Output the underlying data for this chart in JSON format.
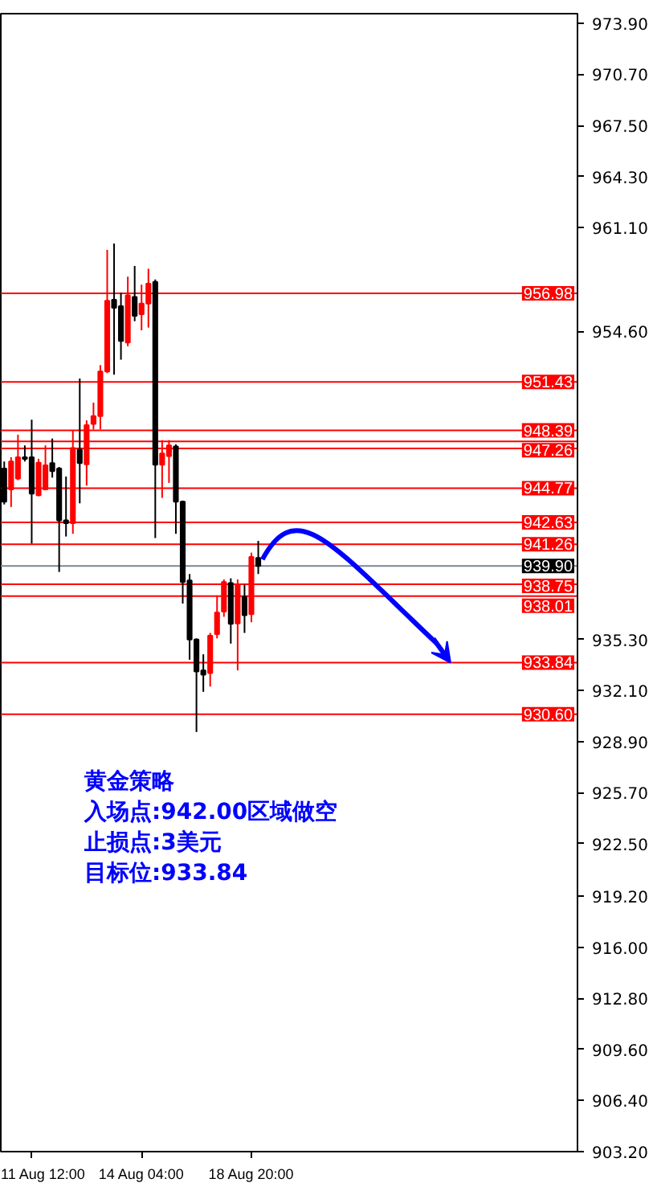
{
  "chart_data": {
    "type": "candlestick",
    "categories": [
      null,
      null,
      null,
      null,
      "11 Aug 12:00",
      null,
      null,
      null,
      null,
      null,
      null,
      null,
      null,
      null,
      null,
      null,
      null,
      null,
      null,
      null,
      "14 Aug 04:00",
      null,
      null,
      null,
      null,
      null,
      null,
      null,
      null,
      null,
      null,
      null,
      null,
      null,
      null,
      null,
      "18 Aug 20:00",
      null,
      null,
      null,
      null,
      null,
      null,
      null,
      null,
      null,
      null,
      null,
      null,
      null,
      null,
      null,
      null,
      null,
      null,
      null,
      null,
      null,
      null,
      null,
      null,
      null,
      null,
      null,
      null,
      null,
      null,
      null,
      null,
      null,
      null,
      null,
      null,
      null,
      null,
      null,
      null,
      null,
      null,
      null,
      null,
      null,
      null,
      null
    ],
    "ohlc": [
      [
        946.0,
        946.44,
        943.75,
        943.92
      ],
      [
        944.69,
        946.71,
        943.59,
        946.44
      ],
      [
        945.37,
        948.12,
        945.27,
        946.71
      ],
      [
        946.71,
        947.45,
        946.44,
        946.61
      ],
      [
        946.71,
        949.06,
        941.3,
        944.43
      ],
      [
        944.33,
        946.61,
        944.26,
        946.37
      ],
      [
        944.69,
        947.45,
        944.69,
        946.2
      ],
      [
        946.34,
        947.88,
        945.43,
        945.84
      ],
      [
        946.0,
        946.1,
        939.52,
        942.75
      ],
      [
        942.75,
        945.5,
        941.74,
        942.58
      ],
      [
        942.58,
        948.39,
        941.91,
        947.28
      ],
      [
        947.18,
        951.64,
        943.82,
        946.34
      ],
      [
        946.27,
        949.02,
        944.93,
        948.72
      ],
      [
        948.79,
        950.13,
        948.45,
        949.29
      ],
      [
        949.29,
        952.48,
        948.45,
        952.08
      ],
      [
        952.08,
        959.7,
        951.98,
        956.51
      ],
      [
        956.58,
        960.1,
        951.88,
        956.07
      ],
      [
        956.17,
        957.01,
        952.82,
        953.99
      ],
      [
        953.89,
        958.02,
        953.66,
        956.85
      ],
      [
        956.75,
        958.69,
        955.23,
        955.57
      ],
      [
        955.67,
        957.52,
        954.66,
        956.34
      ],
      [
        956.34,
        958.52,
        954.83,
        957.58
      ],
      [
        957.69,
        957.85,
        941.64,
        946.24
      ],
      [
        946.24,
        947.78,
        944.16,
        946.94
      ],
      [
        946.78,
        947.78,
        945.1,
        947.45
      ],
      [
        947.38,
        947.51,
        941.91,
        943.92
      ],
      [
        943.92,
        943.99,
        937.54,
        938.89
      ],
      [
        938.99,
        939.39,
        934.02,
        935.29
      ],
      [
        935.29,
        935.36,
        929.49,
        933.28
      ],
      [
        933.35,
        934.36,
        932.01,
        933.08
      ],
      [
        933.18,
        935.7,
        932.34,
        935.53
      ],
      [
        935.63,
        938.05,
        935.36,
        936.97
      ],
      [
        937.04,
        939.05,
        936.71,
        938.89
      ],
      [
        938.82,
        939.12,
        935.03,
        936.27
      ],
      [
        936.3,
        939.05,
        933.35,
        938.72
      ],
      [
        937.95,
        938.72,
        935.7,
        936.81
      ],
      [
        936.87,
        940.73,
        936.37,
        940.46
      ],
      [
        940.4,
        941.47,
        939.39,
        939.9
      ],
      null,
      null,
      null,
      null,
      null,
      null,
      null,
      null,
      null,
      null,
      null,
      null,
      null,
      null,
      null,
      null,
      null,
      null,
      null,
      null,
      null,
      null,
      null,
      null,
      null,
      null,
      null,
      null,
      null,
      null,
      null,
      null,
      null,
      null,
      null,
      null,
      null,
      null,
      null,
      null,
      null,
      null,
      null,
      null,
      null,
      null
    ],
    "colors": [
      "#000000",
      "#ff0000",
      "#ff0000",
      "#000000",
      "#000000",
      "#ff0000",
      "#ff0000",
      "#000000",
      "#000000",
      "#000000",
      "#ff0000",
      "#000000",
      "#ff0000",
      "#ff0000",
      "#ff0000",
      "#ff0000",
      "#000000",
      "#000000",
      "#ff0000",
      "#000000",
      "#ff0000",
      "#ff0000",
      "#000000",
      "#ff0000",
      "#ff0000",
      "#000000",
      "#000000",
      "#000000",
      "#000000",
      "#000000",
      "#ff0000",
      "#ff0000",
      "#ff0000",
      "#000000",
      "#ff0000",
      "#000000",
      "#ff0000",
      "#000000",
      null,
      null,
      null,
      null,
      null,
      null,
      null,
      null,
      null,
      null,
      null,
      null,
      null,
      null,
      null,
      null,
      null,
      null,
      null,
      null,
      null,
      null,
      null,
      null,
      null,
      null,
      null,
      null,
      null,
      null,
      null,
      null,
      null,
      null,
      null,
      null,
      null,
      null,
      null,
      null,
      null,
      null,
      null,
      null,
      null,
      null
    ],
    "ylim": [
      903.2,
      974.5
    ],
    "yticks": [
      {
        "value": 973.9,
        "label": "973.90"
      },
      {
        "value": 970.7,
        "label": "970.70"
      },
      {
        "value": 967.5,
        "label": "967.50"
      },
      {
        "value": 964.3,
        "label": "964.30"
      },
      {
        "value": 961.1,
        "label": "961.10"
      },
      {
        "value": 954.6,
        "label": "954.60"
      },
      {
        "value": 935.3,
        "label": "935.30"
      },
      {
        "value": 932.1,
        "label": "932.10"
      },
      {
        "value": 928.9,
        "label": "928.90"
      },
      {
        "value": 925.7,
        "label": "925.70"
      },
      {
        "value": 922.5,
        "label": "922.50"
      },
      {
        "value": 919.2,
        "label": "919.20"
      },
      {
        "value": 916.0,
        "label": "916.00"
      },
      {
        "value": 912.8,
        "label": "912.80"
      },
      {
        "value": 909.6,
        "label": "909.60"
      },
      {
        "value": 906.4,
        "label": "906.40"
      },
      {
        "value": 903.2,
        "label": "903.20"
      }
    ],
    "ref_lines": [
      {
        "axis": "y",
        "value": 956.98,
        "label": "956.98",
        "color": "#ff0000"
      },
      {
        "axis": "y",
        "value": 951.43,
        "label": "951.43",
        "color": "#ff0000"
      },
      {
        "axis": "y",
        "value": 948.39,
        "label": "948.39",
        "color": "#ff0000"
      },
      {
        "axis": "y",
        "value": 947.7,
        "label": null,
        "color": "#ff0000"
      },
      {
        "axis": "y",
        "value": 947.26,
        "label": "947.26",
        "color": "#ff0000"
      },
      {
        "axis": "y",
        "value": 944.77,
        "label": "944.77",
        "color": "#ff0000"
      },
      {
        "axis": "y",
        "value": 942.63,
        "label": "942.63",
        "color": "#ff0000"
      },
      {
        "axis": "y",
        "value": 941.26,
        "label": "941.26",
        "color": "#ff0000"
      },
      {
        "axis": "y",
        "value": 939.9,
        "label": "939.90",
        "color": "#778899"
      },
      {
        "axis": "y",
        "value": 938.75,
        "label": "938.75",
        "color": "#ff0000"
      },
      {
        "axis": "y",
        "value": 938.01,
        "label": "938.01",
        "color": "#ff0000"
      },
      {
        "axis": "y",
        "value": 933.84,
        "label": "933.84",
        "color": "#ff0000"
      },
      {
        "axis": "y",
        "value": 930.6,
        "label": "930.60",
        "color": "#ff0000"
      }
    ],
    "annotations": [
      "黄金策略",
      "入场点:942.00区域做空",
      "止损点:3美元",
      "目标位:933.84"
    ],
    "grid": false
  }
}
